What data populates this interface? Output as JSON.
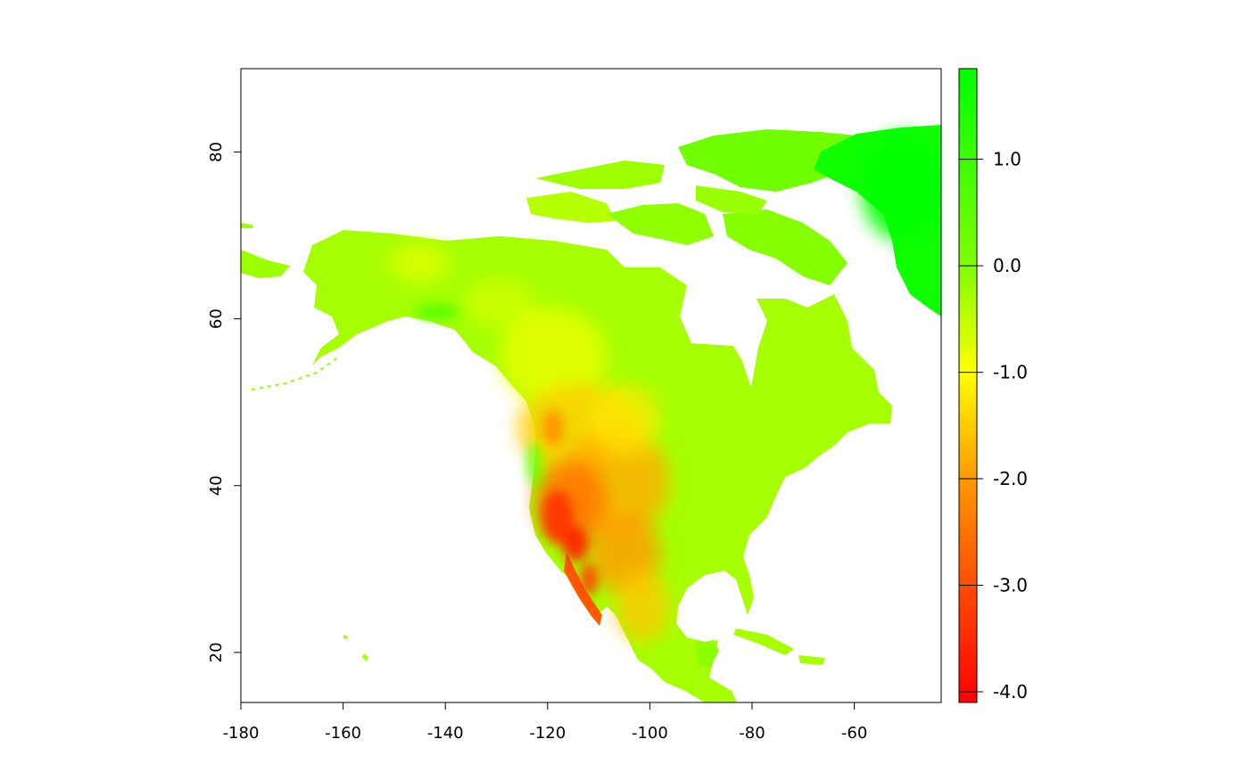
{
  "chart_data": {
    "type": "heatmap",
    "title": "",
    "xlabel": "",
    "ylabel": "",
    "xlim": [
      -180,
      -43
    ],
    "ylim": [
      14,
      90
    ],
    "x_ticks": [
      {
        "value": -180,
        "label": "-180"
      },
      {
        "value": -160,
        "label": "-160"
      },
      {
        "value": -140,
        "label": "-140"
      },
      {
        "value": -120,
        "label": "-120"
      },
      {
        "value": -100,
        "label": "-100"
      },
      {
        "value": -80,
        "label": "-80"
      },
      {
        "value": -60,
        "label": "-60"
      }
    ],
    "y_ticks": [
      {
        "value": 20,
        "label": "20"
      },
      {
        "value": 40,
        "label": "40"
      },
      {
        "value": 60,
        "label": "60"
      },
      {
        "value": 80,
        "label": "80"
      }
    ],
    "legend": {
      "placement": "right",
      "range": [
        -4.1,
        1.85
      ],
      "ticks": [
        {
          "value": 1.0,
          "label": "1.0"
        },
        {
          "value": 0.0,
          "label": "0.0"
        },
        {
          "value": -1.0,
          "label": "-1.0"
        },
        {
          "value": -2.0,
          "label": "-2.0"
        },
        {
          "value": -3.0,
          "label": "-3.0"
        },
        {
          "value": -4.0,
          "label": "-4.0"
        }
      ],
      "color_stops": [
        {
          "value": -4.1,
          "color": "#ff0000"
        },
        {
          "value": -3.0,
          "color": "#ff4d00"
        },
        {
          "value": -2.0,
          "color": "#ff9900"
        },
        {
          "value": -1.0,
          "color": "#ffff00"
        },
        {
          "value": 0.0,
          "color": "#80ff00"
        },
        {
          "value": 1.85,
          "color": "#00ff00"
        }
      ]
    },
    "region": "North America",
    "value_areas": [
      {
        "name": "alaska",
        "value": -0.5
      },
      {
        "name": "canada-interior",
        "value": -0.6
      },
      {
        "name": "eastern-north-america",
        "value": -0.1
      },
      {
        "name": "greenland",
        "value": 1.5
      },
      {
        "name": "arctic-islands",
        "value": -0.2
      },
      {
        "name": "rocky-mountains",
        "value": -1.6
      },
      {
        "name": "great-basin",
        "value": -2.2
      },
      {
        "name": "southwest-desert",
        "value": -3.5
      },
      {
        "name": "mexico",
        "value": -1.2
      },
      {
        "name": "central-america",
        "value": -0.3
      }
    ]
  }
}
